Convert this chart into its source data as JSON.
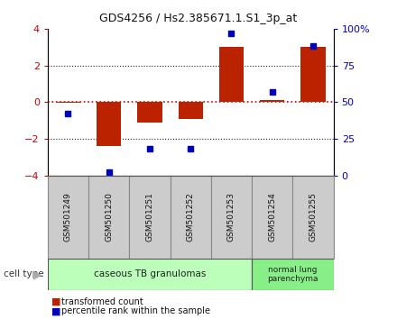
{
  "title": "GDS4256 / Hs2.385671.1.S1_3p_at",
  "categories": [
    "GSM501249",
    "GSM501250",
    "GSM501251",
    "GSM501252",
    "GSM501253",
    "GSM501254",
    "GSM501255"
  ],
  "transformed_counts": [
    -0.05,
    -2.4,
    -1.1,
    -0.9,
    3.0,
    0.1,
    3.0
  ],
  "percentile_ranks": [
    42,
    2,
    18,
    18,
    97,
    57,
    88
  ],
  "ylim_left": [
    -4,
    4
  ],
  "ylim_right": [
    0,
    100
  ],
  "yticks_left": [
    -4,
    -2,
    0,
    2,
    4
  ],
  "yticks_right": [
    0,
    25,
    50,
    75,
    100
  ],
  "yticklabels_right": [
    "0",
    "25",
    "50",
    "75",
    "100%"
  ],
  "bar_color": "#bb2200",
  "dot_color": "#0000bb",
  "hline_color": "#cc0000",
  "grid_color": "#222222",
  "bg_color": "#ffffff",
  "plot_bg": "#ffffff",
  "group1_label": "caseous TB granulomas",
  "group2_label": "normal lung\nparenchyma",
  "group1_indices": [
    0,
    1,
    2,
    3,
    4
  ],
  "group2_indices": [
    5,
    6
  ],
  "group1_color": "#bbffbb",
  "group2_color": "#88ee88",
  "cell_type_label": "cell type",
  "legend_bar_label": "transformed count",
  "legend_dot_label": "percentile rank within the sample",
  "tick_label_color_left": "#cc0000",
  "tick_label_color_right": "#0000cc",
  "sample_box_color": "#cccccc",
  "sample_box_edge": "#888888"
}
